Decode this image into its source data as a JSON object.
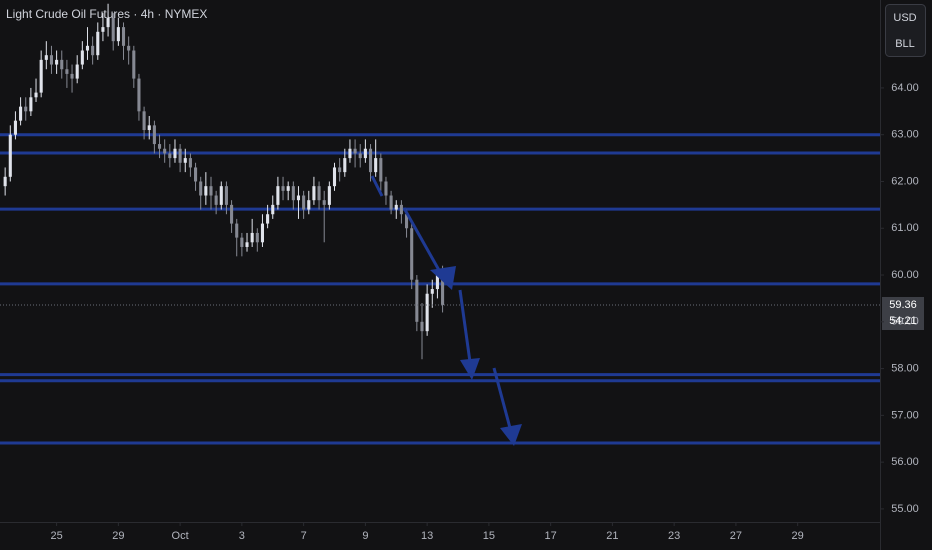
{
  "chart_data": {
    "type": "candlestick",
    "title": "Light Crude Oil Futures · 4h · NYMEX",
    "currency": "USD",
    "unit": "BLL",
    "countdown": "54:21",
    "up_color": "#e0e3eb",
    "down_color": "#868993",
    "level_color": "#1f3a93",
    "xlim": [
      -1,
      170
    ],
    "xticks": [
      {
        "value": 10,
        "label": "25"
      },
      {
        "value": 22,
        "label": "29"
      },
      {
        "value": 34,
        "label": "Oct"
      },
      {
        "value": 46,
        "label": "3"
      },
      {
        "value": 58,
        "label": "7"
      },
      {
        "value": 70,
        "label": "9"
      },
      {
        "value": 82,
        "label": "13"
      },
      {
        "value": 94,
        "label": "15"
      },
      {
        "value": 106,
        "label": "17"
      },
      {
        "value": 118,
        "label": "21"
      },
      {
        "value": 130,
        "label": "23"
      },
      {
        "value": 142,
        "label": "27"
      },
      {
        "value": 154,
        "label": "29"
      }
    ],
    "ylim": [
      54.72,
      65.88
    ],
    "yticks": [
      {
        "value": 55,
        "label": "55.00"
      },
      {
        "value": 56,
        "label": "56.00"
      },
      {
        "value": 57,
        "label": "57.00"
      },
      {
        "value": 58,
        "label": "58.00"
      },
      {
        "value": 59,
        "label": "59.00"
      },
      {
        "value": 60,
        "label": "60.00"
      },
      {
        "value": 61,
        "label": "61.00"
      },
      {
        "value": 62,
        "label": "62.00"
      },
      {
        "value": 63,
        "label": "63.00"
      },
      {
        "value": 64,
        "label": "64.00"
      }
    ],
    "open": [
      61.9,
      62.1,
      63.0,
      63.3,
      63.6,
      63.5,
      63.8,
      63.9,
      64.6,
      64.7,
      64.5,
      64.6,
      64.4,
      64.3,
      64.2,
      64.5,
      64.8,
      64.9,
      64.7,
      65.2,
      65.3,
      65.5,
      65.0,
      65.3,
      64.9,
      64.8,
      64.2,
      63.5,
      63.1,
      63.2,
      62.8,
      62.7,
      62.6,
      62.5,
      62.7,
      62.4,
      62.5,
      62.3,
      62.0,
      61.7,
      61.9,
      61.7,
      61.5,
      61.9,
      61.5,
      61.1,
      60.8,
      60.6,
      60.7,
      60.9,
      60.7,
      61.1,
      61.3,
      61.5,
      61.9,
      61.8,
      61.9,
      61.6,
      61.7,
      61.4,
      61.6,
      61.9,
      61.6,
      61.5,
      61.9,
      62.3,
      62.2,
      62.5,
      62.7,
      62.6,
      62.5,
      62.7,
      62.2,
      62.5,
      62.0,
      61.7,
      61.4,
      61.5,
      61.3,
      61.0,
      59.9,
      59.0,
      58.8,
      59.6,
      59.7,
      60.1
    ],
    "high": [
      62.3,
      63.2,
      63.5,
      63.8,
      63.8,
      64.0,
      64.2,
      64.8,
      65.0,
      64.9,
      64.8,
      64.8,
      64.6,
      64.5,
      64.7,
      65.0,
      65.3,
      65.1,
      65.4,
      65.6,
      65.8,
      65.6,
      65.5,
      65.4,
      65.1,
      64.9,
      64.3,
      63.6,
      63.4,
      63.3,
      63.0,
      62.9,
      62.8,
      62.9,
      62.8,
      62.7,
      62.6,
      62.4,
      62.1,
      62.2,
      62.1,
      61.8,
      62.0,
      62.0,
      61.6,
      61.2,
      60.9,
      60.9,
      61.2,
      61.0,
      61.3,
      61.5,
      61.7,
      62.1,
      62.1,
      62.0,
      62.0,
      61.9,
      61.8,
      61.8,
      62.1,
      62.0,
      61.8,
      62.0,
      62.4,
      62.5,
      62.7,
      62.9,
      62.9,
      62.8,
      62.9,
      62.8,
      62.9,
      62.6,
      62.1,
      61.8,
      61.6,
      61.6,
      61.4,
      61.1,
      60.0,
      59.4,
      59.8,
      59.9,
      60.2,
      60.2
    ],
    "low": [
      61.7,
      62.0,
      62.9,
      63.2,
      63.3,
      63.4,
      63.7,
      63.8,
      64.4,
      64.3,
      64.3,
      64.2,
      64.0,
      63.9,
      64.1,
      64.4,
      64.6,
      64.5,
      64.6,
      65.0,
      65.1,
      64.8,
      64.9,
      64.6,
      64.5,
      64.0,
      63.3,
      62.9,
      62.9,
      62.6,
      62.5,
      62.4,
      62.3,
      62.4,
      62.2,
      62.2,
      62.1,
      61.8,
      61.4,
      61.5,
      61.4,
      61.3,
      61.4,
      61.3,
      60.9,
      60.4,
      60.4,
      60.5,
      60.6,
      60.5,
      60.6,
      61.0,
      61.2,
      61.4,
      61.6,
      61.6,
      61.4,
      61.2,
      61.2,
      61.3,
      61.5,
      61.4,
      60.7,
      61.4,
      61.8,
      62.0,
      62.1,
      62.4,
      62.3,
      62.3,
      62.4,
      62.0,
      62.1,
      61.8,
      61.5,
      61.3,
      61.2,
      61.1,
      60.8,
      59.7,
      58.8,
      58.2,
      58.7,
      59.3,
      59.5,
      59.2
    ],
    "close": [
      62.1,
      63.0,
      63.3,
      63.6,
      63.5,
      63.8,
      63.9,
      64.6,
      64.7,
      64.5,
      64.6,
      64.4,
      64.3,
      64.2,
      64.5,
      64.8,
      64.9,
      64.7,
      65.2,
      65.3,
      65.5,
      65.0,
      65.3,
      64.9,
      64.8,
      64.2,
      63.5,
      63.1,
      63.2,
      62.8,
      62.7,
      62.6,
      62.5,
      62.7,
      62.4,
      62.5,
      62.3,
      62.0,
      61.7,
      61.9,
      61.7,
      61.5,
      61.9,
      61.5,
      61.1,
      60.8,
      60.6,
      60.7,
      60.9,
      60.7,
      61.1,
      61.3,
      61.5,
      61.9,
      61.8,
      61.9,
      61.6,
      61.7,
      61.4,
      61.6,
      61.9,
      61.6,
      61.5,
      61.9,
      62.3,
      62.2,
      62.5,
      62.7,
      62.6,
      62.5,
      62.7,
      62.2,
      62.5,
      62.0,
      61.7,
      61.4,
      61.5,
      61.3,
      61.0,
      59.9,
      59.0,
      58.8,
      59.6,
      59.7,
      60.1,
      59.36
    ],
    "levels": [
      63.0,
      62.61,
      61.41,
      59.81,
      57.87,
      57.74,
      56.41
    ]
  }
}
